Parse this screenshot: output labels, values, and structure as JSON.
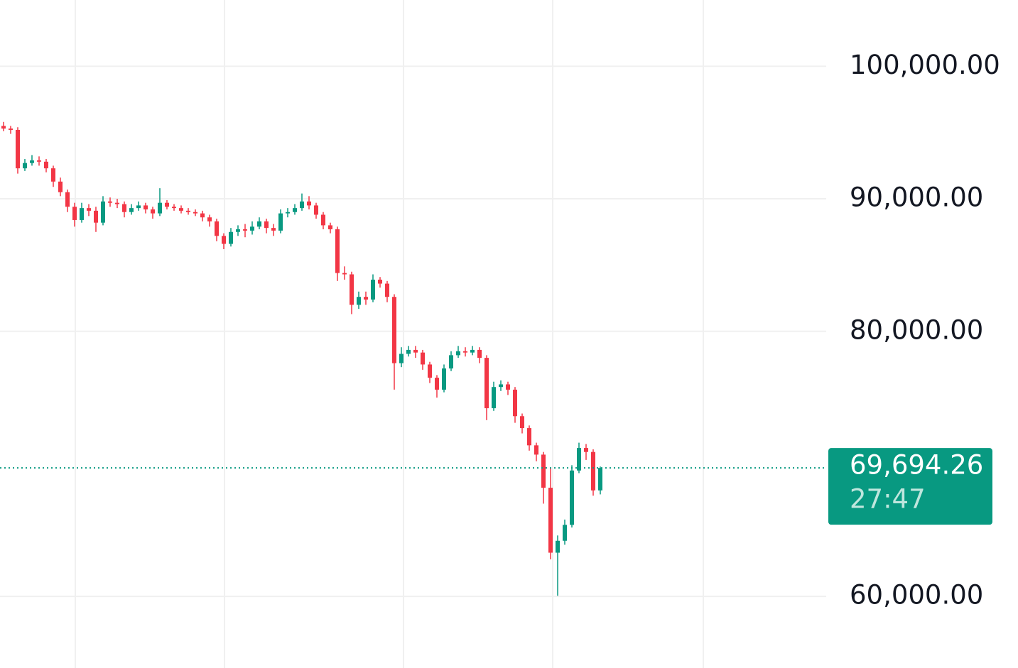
{
  "chart_data": {
    "type": "candlestick",
    "up_color": "#089981",
    "down_color": "#f23645",
    "ylim": [
      54600,
      105000
    ],
    "yticks": [
      {
        "value": 60000,
        "label": "60,000.00"
      },
      {
        "value": 80000,
        "label": "80,000.00"
      },
      {
        "value": 90000,
        "label": "90,000.00"
      },
      {
        "value": 100000,
        "label": "100,000.00"
      }
    ],
    "grid": true,
    "last_price": {
      "value": 69694.26,
      "label": "69,694.26"
    },
    "countdown": "27:47",
    "open": [
      95500,
      95300,
      95200,
      92300,
      92700,
      92900,
      92800,
      92300,
      91300,
      90500,
      89400,
      88400,
      89300,
      89100,
      88200,
      89800,
      89700,
      89600,
      89000,
      89300,
      89500,
      89200,
      88900,
      89700,
      89400,
      89300,
      89100,
      89000,
      88900,
      88600,
      88300,
      87200,
      86600,
      87500,
      87700,
      87600,
      87900,
      88300,
      87800,
      87600,
      88900,
      89000,
      89300,
      89800,
      89500,
      88800,
      88000,
      87700,
      84400,
      84300,
      82000,
      82600,
      82400,
      83900,
      83600,
      82600,
      77600,
      78300,
      78600,
      78400,
      77500,
      76500,
      75600,
      77200,
      78200,
      78500,
      78400,
      78600,
      78000,
      74200,
      75800,
      76000,
      75600,
      73600,
      72700,
      71400,
      70700,
      68200,
      63300,
      64200,
      65400,
      69500,
      71200,
      70900,
      68000
    ],
    "high": [
      95800,
      95500,
      95400,
      93000,
      93300,
      93200,
      93000,
      92500,
      91600,
      90700,
      89700,
      89700,
      89600,
      89400,
      90200,
      90100,
      90000,
      89800,
      89600,
      89800,
      89700,
      89400,
      90800,
      89900,
      89600,
      89500,
      89300,
      89200,
      89100,
      88800,
      88500,
      87400,
      87800,
      88000,
      88100,
      88300,
      88600,
      88500,
      88100,
      89200,
      89300,
      89600,
      90400,
      90200,
      89700,
      89000,
      88200,
      87900,
      84900,
      84500,
      83000,
      83000,
      84300,
      84100,
      83800,
      82800,
      78800,
      78900,
      78900,
      78600,
      77700,
      76700,
      77500,
      78500,
      78900,
      78800,
      78900,
      78800,
      78200,
      76200,
      76300,
      76200,
      75800,
      73800,
      72900,
      71600,
      70900,
      69700,
      64600,
      65800,
      69900,
      71600,
      71500,
      71100,
      69800
    ],
    "low": [
      95100,
      94900,
      91900,
      92100,
      92500,
      92500,
      92000,
      90900,
      90200,
      89000,
      87900,
      88200,
      88700,
      87500,
      88000,
      89400,
      89300,
      88600,
      88800,
      89100,
      88900,
      88500,
      88700,
      89200,
      89100,
      88900,
      88800,
      88700,
      88300,
      87900,
      86800,
      86200,
      86400,
      87200,
      87100,
      87300,
      87700,
      87400,
      87200,
      87400,
      88600,
      88800,
      89100,
      89200,
      88500,
      87700,
      87400,
      83800,
      83900,
      81300,
      81700,
      82000,
      82200,
      83300,
      82200,
      75600,
      77300,
      78100,
      78000,
      77100,
      76100,
      75000,
      75400,
      77000,
      78000,
      78100,
      78200,
      77600,
      73300,
      74000,
      75500,
      75200,
      73100,
      72300,
      71000,
      70200,
      67000,
      62800,
      60050,
      63900,
      65200,
      69300,
      70300,
      67600,
      67700
    ],
    "close": [
      95300,
      95200,
      92300,
      92700,
      92900,
      92800,
      92300,
      91300,
      90500,
      89400,
      88400,
      89300,
      89100,
      88200,
      89800,
      89700,
      89600,
      89000,
      89300,
      89500,
      89200,
      88900,
      89700,
      89400,
      89300,
      89100,
      89000,
      88900,
      88600,
      88300,
      87200,
      86600,
      87500,
      87700,
      87600,
      87900,
      88300,
      87800,
      87600,
      88900,
      89000,
      89300,
      89800,
      89500,
      88800,
      88000,
      87700,
      84400,
      84300,
      82000,
      82600,
      82400,
      83900,
      83600,
      82600,
      77600,
      78300,
      78600,
      78400,
      77500,
      76500,
      75600,
      77200,
      78200,
      78500,
      78400,
      78600,
      78000,
      74200,
      75800,
      76000,
      75600,
      73600,
      72700,
      71400,
      70700,
      68200,
      63300,
      64200,
      65400,
      69500,
      71200,
      70900,
      68000,
      69694.26
    ]
  }
}
